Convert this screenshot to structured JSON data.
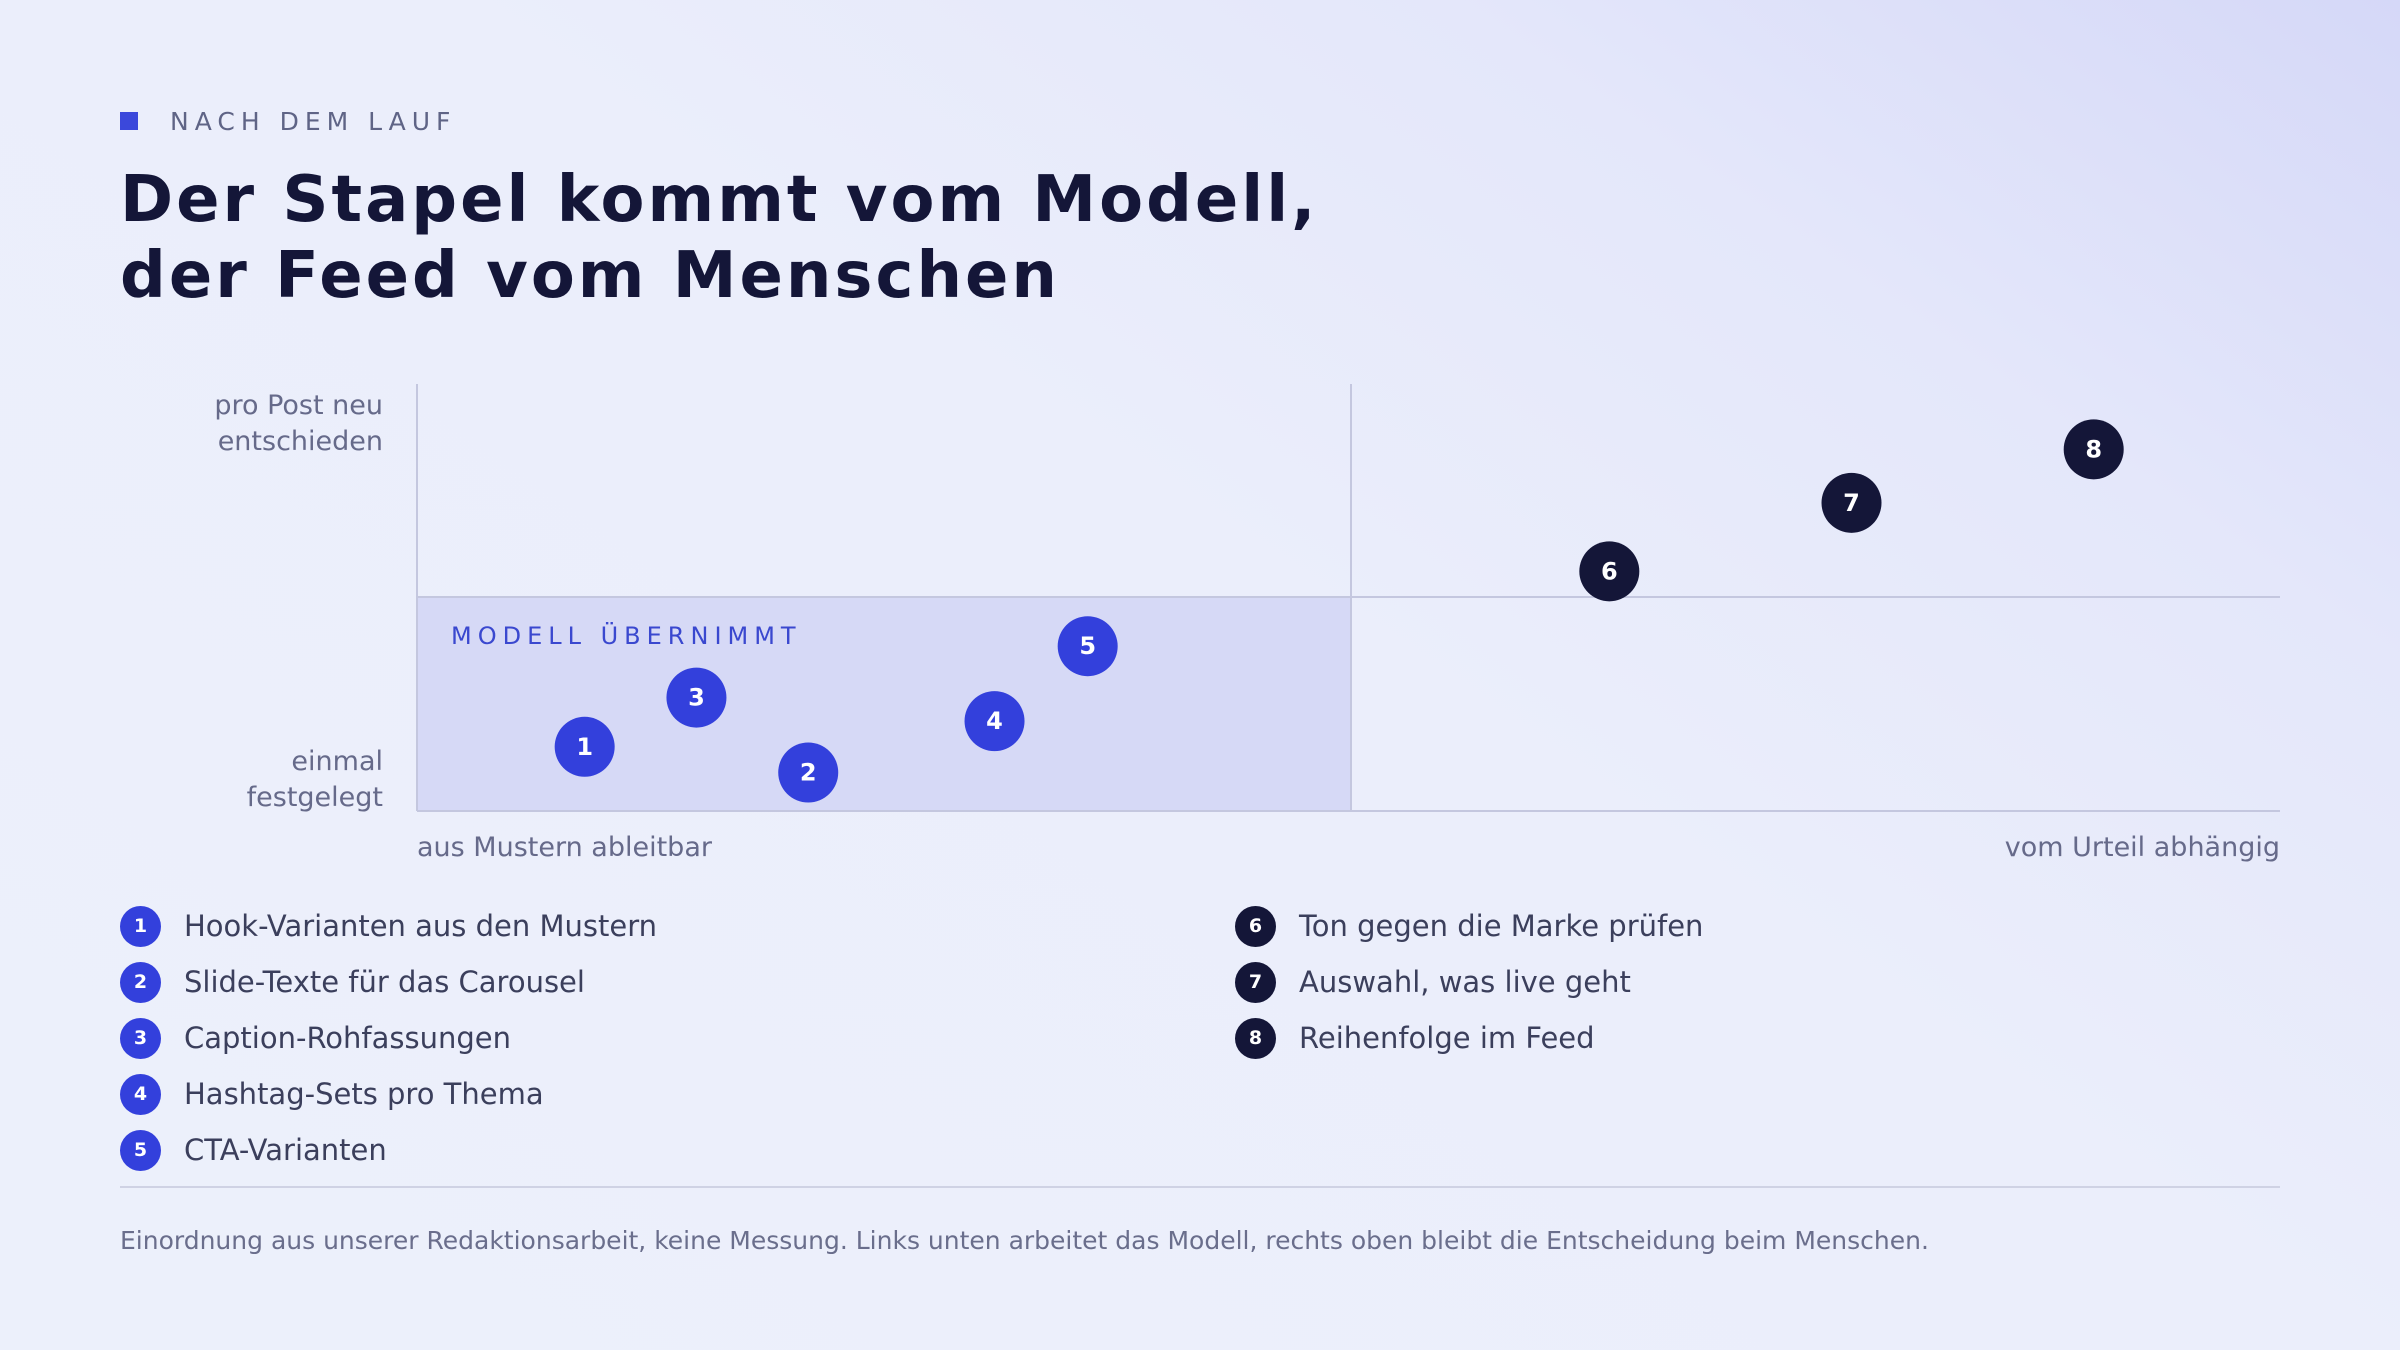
{
  "eyebrow": "NACH DEM LAUF",
  "title_line1": "Der Stapel kommt vom Modell,",
  "title_line2": "der Feed vom Menschen",
  "colors": {
    "model": "#3340dc",
    "human": "#141638",
    "zone": "#d6d9f6",
    "axis": "#c4c7df",
    "zone_label": "#3a48cf"
  },
  "chart_data": {
    "type": "scatter",
    "y_axis": {
      "low_label": "einmal festgelegt",
      "high_label": "pro Post neu entschieden",
      "low_lines": [
        "einmal",
        "festgelegt"
      ],
      "high_lines": [
        "pro Post neu",
        "entschieden"
      ]
    },
    "x_axis": {
      "low_label": "aus Mustern ableitbar",
      "high_label": "vom Urteil abhängig"
    },
    "zone_label": "MODELL ÜBERNIMMT",
    "points": [
      {
        "id": "1",
        "x": 0.09,
        "y": 0.3,
        "group": "model"
      },
      {
        "id": "2",
        "x": 0.21,
        "y": 0.18,
        "group": "model"
      },
      {
        "id": "3",
        "x": 0.15,
        "y": 0.53,
        "group": "model"
      },
      {
        "id": "4",
        "x": 0.31,
        "y": 0.42,
        "group": "model"
      },
      {
        "id": "5",
        "x": 0.36,
        "y": 0.77,
        "group": "model"
      },
      {
        "id": "6",
        "x": 0.64,
        "y": 1.12,
        "group": "human"
      },
      {
        "id": "7",
        "x": 0.77,
        "y": 1.44,
        "group": "human"
      },
      {
        "id": "8",
        "x": 0.9,
        "y": 1.69,
        "group": "human"
      }
    ]
  },
  "legend": {
    "left": [
      {
        "num": "1",
        "label": "Hook-Varianten aus den Mustern",
        "group": "model"
      },
      {
        "num": "2",
        "label": "Slide-Texte für das Carousel",
        "group": "model"
      },
      {
        "num": "3",
        "label": "Caption-Rohfassungen",
        "group": "model"
      },
      {
        "num": "4",
        "label": "Hashtag-Sets pro Thema",
        "group": "model"
      },
      {
        "num": "5",
        "label": "CTA-Varianten",
        "group": "model"
      }
    ],
    "right": [
      {
        "num": "6",
        "label": "Ton gegen die Marke prüfen",
        "group": "human"
      },
      {
        "num": "7",
        "label": "Auswahl, was live geht",
        "group": "human"
      },
      {
        "num": "8",
        "label": "Reihenfolge im Feed",
        "group": "human"
      }
    ]
  },
  "footnote": "Einordnung aus unserer Redaktionsarbeit, keine Messung. Links unten arbeitet das Modell, rechts oben bleibt die Entscheidung beim Menschen."
}
